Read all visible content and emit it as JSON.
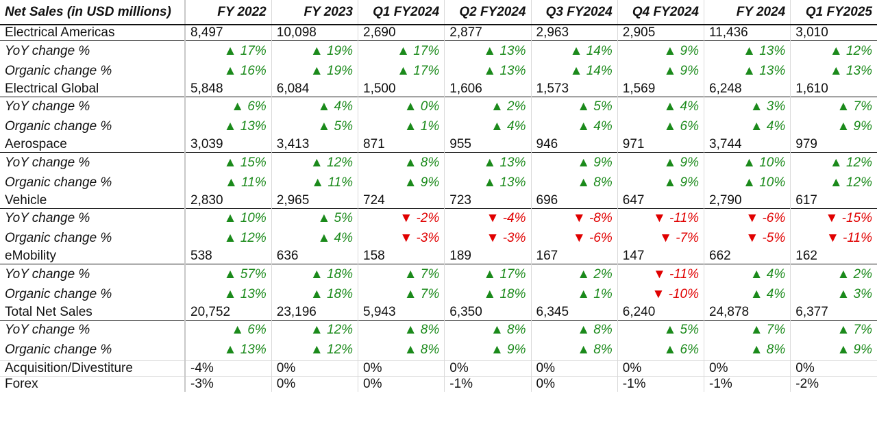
{
  "chart_data": {
    "type": "table",
    "header": [
      "Net Sales (in USD millions)",
      "FY 2022",
      "FY 2023",
      "Q1 FY2024",
      "Q2 FY2024",
      "Q3 FY2024",
      "Q4 FY2024",
      "FY 2024",
      "Q1 FY2025"
    ],
    "colors": {
      "up": "#1b8a1b",
      "down": "#e00000",
      "segment_bg": "#d9e4f7"
    },
    "rows": [
      {
        "type": "segment",
        "label": "Electrical Americas",
        "values": [
          "8,497",
          "10,098",
          "2,690",
          "2,877",
          "2,963",
          "2,905",
          "11,436",
          "3,010"
        ]
      },
      {
        "type": "sub",
        "label": "YoY change %",
        "values": [
          "▲ 17%",
          "▲ 19%",
          "▲ 17%",
          "▲ 13%",
          "▲ 14%",
          "▲ 9%",
          "▲ 13%",
          "▲ 12%"
        ]
      },
      {
        "type": "sub",
        "label": "Organic change %",
        "values": [
          "▲ 16%",
          "▲ 19%",
          "▲ 17%",
          "▲ 13%",
          "▲ 14%",
          "▲ 9%",
          "▲ 13%",
          "▲ 13%"
        ]
      },
      {
        "type": "segment",
        "label": "Electrical Global",
        "values": [
          "5,848",
          "6,084",
          "1,500",
          "1,606",
          "1,573",
          "1,569",
          "6,248",
          "1,610"
        ]
      },
      {
        "type": "sub",
        "label": "YoY change %",
        "values": [
          "▲ 6%",
          "▲ 4%",
          "▲ 0%",
          "▲ 2%",
          "▲ 5%",
          "▲ 4%",
          "▲ 3%",
          "▲ 7%"
        ]
      },
      {
        "type": "sub",
        "label": "Organic change %",
        "values": [
          "▲ 13%",
          "▲ 5%",
          "▲ 1%",
          "▲ 4%",
          "▲ 4%",
          "▲ 6%",
          "▲ 4%",
          "▲ 9%"
        ]
      },
      {
        "type": "segment",
        "label": "Aerospace",
        "values": [
          "3,039",
          "3,413",
          "871",
          "955",
          "946",
          "971",
          "3,744",
          "979"
        ]
      },
      {
        "type": "sub",
        "label": "YoY change %",
        "values": [
          "▲ 15%",
          "▲ 12%",
          "▲ 8%",
          "▲ 13%",
          "▲ 9%",
          "▲ 9%",
          "▲ 10%",
          "▲ 12%"
        ]
      },
      {
        "type": "sub",
        "label": "Organic change %",
        "values": [
          "▲ 11%",
          "▲ 11%",
          "▲ 9%",
          "▲ 13%",
          "▲ 8%",
          "▲ 9%",
          "▲ 10%",
          "▲ 12%"
        ]
      },
      {
        "type": "segment",
        "label": "Vehicle",
        "values": [
          "2,830",
          "2,965",
          "724",
          "723",
          "696",
          "647",
          "2,790",
          "617"
        ]
      },
      {
        "type": "sub",
        "label": "YoY change %",
        "values": [
          "▲ 10%",
          "▲ 5%",
          "▼ -2%",
          "▼ -4%",
          "▼ -8%",
          "▼ -11%",
          "▼ -6%",
          "▼ -15%"
        ]
      },
      {
        "type": "sub",
        "label": "Organic change %",
        "values": [
          "▲ 12%",
          "▲ 4%",
          "▼ -3%",
          "▼ -3%",
          "▼ -6%",
          "▼ -7%",
          "▼ -5%",
          "▼ -11%"
        ]
      },
      {
        "type": "segment",
        "label": "eMobility",
        "values": [
          "538",
          "636",
          "158",
          "189",
          "167",
          "147",
          "662",
          "162"
        ]
      },
      {
        "type": "sub",
        "label": "YoY change %",
        "values": [
          "▲ 57%",
          "▲ 18%",
          "▲ 7%",
          "▲ 17%",
          "▲ 2%",
          "▼ -11%",
          "▲ 4%",
          "▲ 2%"
        ]
      },
      {
        "type": "sub",
        "label": "Organic change %",
        "values": [
          "▲ 13%",
          "▲ 18%",
          "▲ 7%",
          "▲ 18%",
          "▲ 1%",
          "▼ -10%",
          "▲ 4%",
          "▲ 3%"
        ]
      },
      {
        "type": "segment",
        "label": "Total Net Sales",
        "values": [
          "20,752",
          "23,196",
          "5,943",
          "6,350",
          "6,345",
          "6,240",
          "24,878",
          "6,377"
        ]
      },
      {
        "type": "sub",
        "label": "YoY change %",
        "values": [
          "▲ 6%",
          "▲ 12%",
          "▲ 8%",
          "▲ 8%",
          "▲ 8%",
          "▲ 5%",
          "▲ 7%",
          "▲ 7%"
        ]
      },
      {
        "type": "sub",
        "label": "Organic change %",
        "values": [
          "▲ 13%",
          "▲ 12%",
          "▲ 8%",
          "▲ 9%",
          "▲ 8%",
          "▲ 6%",
          "▲ 8%",
          "▲ 9%"
        ]
      },
      {
        "type": "plain",
        "label": "Acquisition/Divestiture",
        "values": [
          "-4%",
          "0%",
          "0%",
          "0%",
          "0%",
          "0%",
          "0%",
          "0%"
        ]
      },
      {
        "type": "plain",
        "label": "Forex",
        "values": [
          "-3%",
          "0%",
          "0%",
          "-1%",
          "0%",
          "-1%",
          "-1%",
          "-2%"
        ]
      }
    ]
  }
}
